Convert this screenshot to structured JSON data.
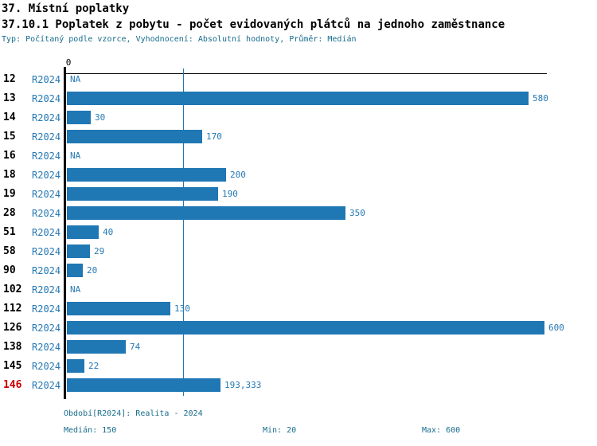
{
  "header": {
    "title": "37. Místní poplatky",
    "subtitle": "37.10.1 Poplatek z pobytu - počet evidovaných plátců na jednoho zaměstnance",
    "meta": "Typ: Počítaný podle vzorce, Vyhodnocení: Absolutní hodnoty, Průměr: Medián"
  },
  "chart_data": {
    "type": "bar",
    "orientation": "horizontal",
    "title": "37.10.1 Poplatek z pobytu - počet evidovaných plátců na jednoho zaměstnance",
    "axis_zero_label": "0",
    "xlim": [
      0,
      600
    ],
    "median_value": 150,
    "median_line": true,
    "series_name": "R2024",
    "categories": [
      "12",
      "13",
      "14",
      "15",
      "16",
      "18",
      "19",
      "28",
      "51",
      "58",
      "90",
      "102",
      "112",
      "126",
      "138",
      "145",
      "146"
    ],
    "rows": [
      {
        "id": "12",
        "period": "R2024",
        "value": null,
        "label": "NA"
      },
      {
        "id": "13",
        "period": "R2024",
        "value": 580,
        "label": "580"
      },
      {
        "id": "14",
        "period": "R2024",
        "value": 30,
        "label": "30"
      },
      {
        "id": "15",
        "period": "R2024",
        "value": 170,
        "label": "170"
      },
      {
        "id": "16",
        "period": "R2024",
        "value": null,
        "label": "NA"
      },
      {
        "id": "18",
        "period": "R2024",
        "value": 200,
        "label": "200"
      },
      {
        "id": "19",
        "period": "R2024",
        "value": 190,
        "label": "190"
      },
      {
        "id": "28",
        "period": "R2024",
        "value": 350,
        "label": "350"
      },
      {
        "id": "51",
        "period": "R2024",
        "value": 40,
        "label": "40"
      },
      {
        "id": "58",
        "period": "R2024",
        "value": 29,
        "label": "29"
      },
      {
        "id": "90",
        "period": "R2024",
        "value": 20,
        "label": "20"
      },
      {
        "id": "102",
        "period": "R2024",
        "value": null,
        "label": "NA"
      },
      {
        "id": "112",
        "period": "R2024",
        "value": 130,
        "label": "130"
      },
      {
        "id": "126",
        "period": "R2024",
        "value": 600,
        "label": "600"
      },
      {
        "id": "138",
        "period": "R2024",
        "value": 74,
        "label": "74"
      },
      {
        "id": "145",
        "period": "R2024",
        "value": 22,
        "label": "22"
      },
      {
        "id": "146",
        "period": "R2024",
        "value": 193.333,
        "label": "193,333",
        "highlight": true
      }
    ]
  },
  "footer": {
    "period_info": "Období[R2024]: Realita - 2024",
    "median": "Medián: 150",
    "min": "Min: 20",
    "max": "Max: 600"
  },
  "colors": {
    "bar": "#1f77b4",
    "blue_text": "#2478b4",
    "annotation": "#176c8c",
    "highlight_row": "#cc0000",
    "axis": "#000000"
  }
}
